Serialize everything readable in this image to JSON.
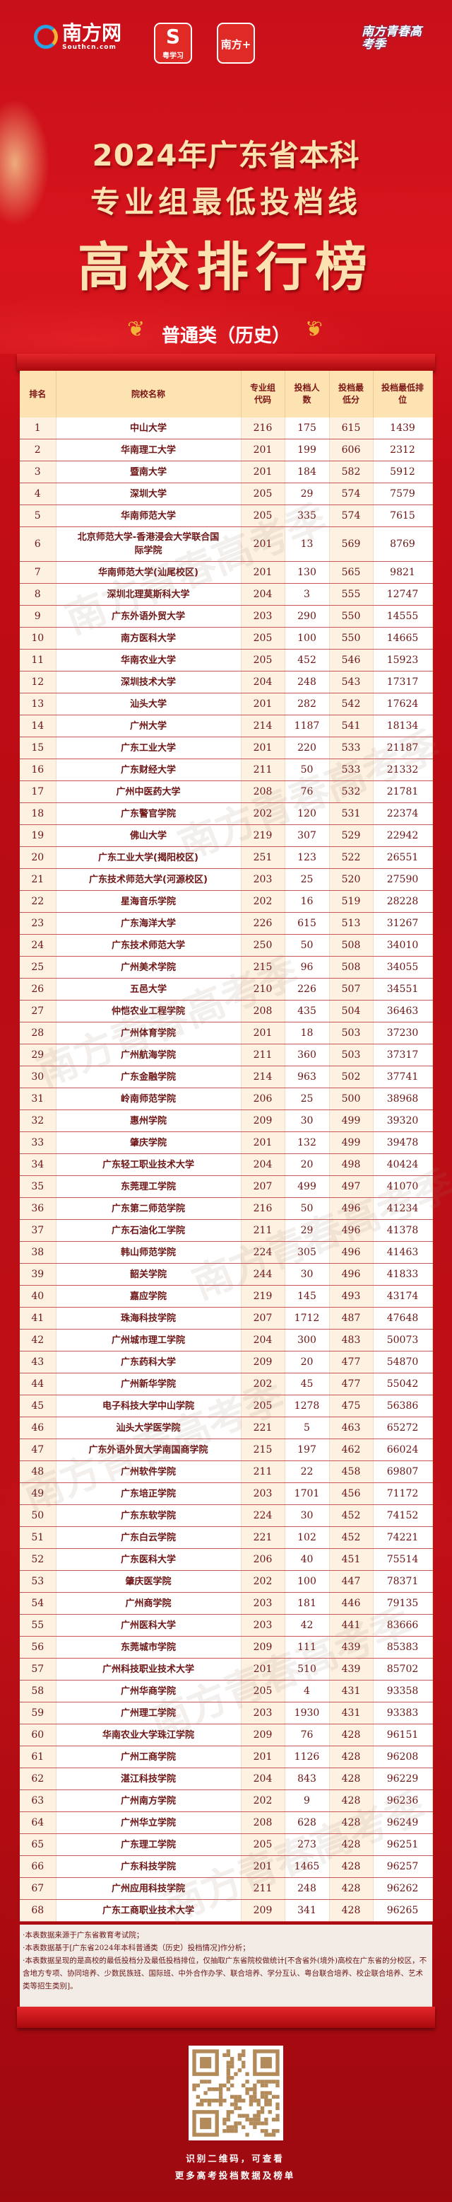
{
  "logos": {
    "southcn": "南方网",
    "southcn_sub": "Southcn.com",
    "yuexuexi": "粤学习",
    "nanfangplus": "南方+",
    "qingchun": "南方青春高考季"
  },
  "header": {
    "line1": "2024年广东省本科",
    "line2": "专业组最低投档线",
    "line3": "高校排行榜",
    "subtitle": "普通类（历史）"
  },
  "watermark": "南方青春高考季",
  "colors": {
    "primary_red": "#c8101a",
    "gold": "#fbe2b0",
    "text_dark_red": "#6d1414"
  },
  "table": {
    "columns": [
      "排名",
      "院校名称",
      "专业组代码",
      "投档人数",
      "投档最低分",
      "投档最低排位"
    ],
    "rows": [
      [
        "1",
        "中山大学",
        "216",
        "175",
        "615",
        "1439"
      ],
      [
        "2",
        "华南理工大学",
        "201",
        "199",
        "606",
        "2312"
      ],
      [
        "3",
        "暨南大学",
        "201",
        "184",
        "582",
        "5912"
      ],
      [
        "4",
        "深圳大学",
        "205",
        "29",
        "574",
        "7579"
      ],
      [
        "5",
        "华南师范大学",
        "205",
        "335",
        "574",
        "7615"
      ],
      [
        "6",
        "北京师范大学-香港浸会大学联合国际学院",
        "201",
        "13",
        "569",
        "8769"
      ],
      [
        "7",
        "华南师范大学(汕尾校区)",
        "201",
        "130",
        "565",
        "9821"
      ],
      [
        "8",
        "深圳北理莫斯科大学",
        "204",
        "3",
        "555",
        "12747"
      ],
      [
        "9",
        "广东外语外贸大学",
        "203",
        "290",
        "550",
        "14555"
      ],
      [
        "10",
        "南方医科大学",
        "205",
        "100",
        "550",
        "14665"
      ],
      [
        "11",
        "华南农业大学",
        "205",
        "452",
        "546",
        "15923"
      ],
      [
        "12",
        "深圳技术大学",
        "204",
        "248",
        "543",
        "17317"
      ],
      [
        "13",
        "汕头大学",
        "201",
        "282",
        "542",
        "17624"
      ],
      [
        "14",
        "广州大学",
        "214",
        "1187",
        "541",
        "18134"
      ],
      [
        "15",
        "广东工业大学",
        "201",
        "220",
        "533",
        "21187"
      ],
      [
        "16",
        "广东财经大学",
        "211",
        "50",
        "533",
        "21332"
      ],
      [
        "17",
        "广州中医药大学",
        "208",
        "76",
        "532",
        "21781"
      ],
      [
        "18",
        "广东警官学院",
        "202",
        "120",
        "531",
        "22374"
      ],
      [
        "19",
        "佛山大学",
        "219",
        "307",
        "529",
        "22942"
      ],
      [
        "20",
        "广东工业大学(揭阳校区)",
        "251",
        "123",
        "522",
        "26551"
      ],
      [
        "21",
        "广东技术师范大学(河源校区)",
        "203",
        "25",
        "520",
        "27590"
      ],
      [
        "22",
        "星海音乐学院",
        "202",
        "16",
        "519",
        "28228"
      ],
      [
        "23",
        "广东海洋大学",
        "226",
        "615",
        "513",
        "31267"
      ],
      [
        "24",
        "广东技术师范大学",
        "250",
        "50",
        "508",
        "34010"
      ],
      [
        "25",
        "广州美术学院",
        "215",
        "96",
        "508",
        "34055"
      ],
      [
        "26",
        "五邑大学",
        "210",
        "226",
        "507",
        "34551"
      ],
      [
        "27",
        "仲恺农业工程学院",
        "208",
        "435",
        "504",
        "36463"
      ],
      [
        "28",
        "广州体育学院",
        "201",
        "18",
        "503",
        "37230"
      ],
      [
        "29",
        "广州航海学院",
        "211",
        "360",
        "503",
        "37317"
      ],
      [
        "30",
        "广东金融学院",
        "214",
        "963",
        "502",
        "37741"
      ],
      [
        "31",
        "岭南师范学院",
        "206",
        "25",
        "500",
        "38968"
      ],
      [
        "32",
        "惠州学院",
        "209",
        "30",
        "499",
        "39320"
      ],
      [
        "33",
        "肇庆学院",
        "201",
        "132",
        "499",
        "39478"
      ],
      [
        "34",
        "广东轻工职业技术大学",
        "204",
        "20",
        "498",
        "40424"
      ],
      [
        "35",
        "东莞理工学院",
        "207",
        "499",
        "497",
        "41070"
      ],
      [
        "36",
        "广东第二师范学院",
        "216",
        "50",
        "496",
        "41234"
      ],
      [
        "37",
        "广东石油化工学院",
        "211",
        "29",
        "496",
        "41378"
      ],
      [
        "38",
        "韩山师范学院",
        "224",
        "305",
        "496",
        "41463"
      ],
      [
        "39",
        "韶关学院",
        "244",
        "30",
        "496",
        "41833"
      ],
      [
        "40",
        "嘉应学院",
        "219",
        "145",
        "493",
        "43174"
      ],
      [
        "41",
        "珠海科技学院",
        "207",
        "1712",
        "487",
        "47648"
      ],
      [
        "42",
        "广州城市理工学院",
        "204",
        "300",
        "483",
        "50073"
      ],
      [
        "43",
        "广东药科大学",
        "209",
        "20",
        "477",
        "54870"
      ],
      [
        "44",
        "广州新华学院",
        "202",
        "45",
        "477",
        "55042"
      ],
      [
        "45",
        "电子科技大学中山学院",
        "205",
        "1278",
        "475",
        "56386"
      ],
      [
        "46",
        "汕头大学医学院",
        "221",
        "5",
        "463",
        "65272"
      ],
      [
        "47",
        "广东外语外贸大学南国商学院",
        "215",
        "197",
        "462",
        "66024"
      ],
      [
        "48",
        "广州软件学院",
        "211",
        "22",
        "458",
        "69807"
      ],
      [
        "49",
        "广东培正学院",
        "203",
        "1701",
        "456",
        "71172"
      ],
      [
        "50",
        "广东东软学院",
        "224",
        "30",
        "452",
        "74152"
      ],
      [
        "51",
        "广东白云学院",
        "221",
        "102",
        "452",
        "74221"
      ],
      [
        "52",
        "广东医科大学",
        "206",
        "40",
        "451",
        "75514"
      ],
      [
        "53",
        "肇庆医学院",
        "202",
        "100",
        "447",
        "78371"
      ],
      [
        "54",
        "广州商学院",
        "203",
        "181",
        "446",
        "79135"
      ],
      [
        "55",
        "广州医科大学",
        "203",
        "42",
        "441",
        "83666"
      ],
      [
        "56",
        "东莞城市学院",
        "209",
        "111",
        "439",
        "85383"
      ],
      [
        "57",
        "广州科技职业技术大学",
        "201",
        "510",
        "439",
        "85702"
      ],
      [
        "58",
        "广州华商学院",
        "205",
        "4",
        "431",
        "93358"
      ],
      [
        "59",
        "广州理工学院",
        "203",
        "1930",
        "431",
        "93383"
      ],
      [
        "60",
        "华南农业大学珠江学院",
        "209",
        "76",
        "428",
        "96151"
      ],
      [
        "61",
        "广州工商学院",
        "201",
        "1126",
        "428",
        "96208"
      ],
      [
        "62",
        "湛江科技学院",
        "204",
        "843",
        "428",
        "96229"
      ],
      [
        "63",
        "广州南方学院",
        "202",
        "9",
        "428",
        "96236"
      ],
      [
        "64",
        "广州华立学院",
        "208",
        "628",
        "428",
        "96249"
      ],
      [
        "65",
        "广东理工学院",
        "205",
        "273",
        "428",
        "96251"
      ],
      [
        "66",
        "广东科技学院",
        "201",
        "1465",
        "428",
        "96257"
      ],
      [
        "67",
        "广州应用科技学院",
        "211",
        "248",
        "428",
        "96262"
      ],
      [
        "68",
        "广东工商职业技术大学",
        "209",
        "341",
        "428",
        "96265"
      ]
    ]
  },
  "notes": [
    "·本表数据来源于广东省教育考试院；",
    "·本表数据基于[广东省2024年本科普通类（历史）投档情况]作分析；",
    "·本表数据呈现的是高校的最低投档分及最低投档排位，仅抽取广东省院校做统计[不含省外(境外)高校在广东省的分校区，不含地方专项、协同培养、少数民族班、国际班、中外合作办学、联合培养、学分互认、粤台联合培养、校企联合培养、艺术类等招生类别]。"
  ],
  "footer": {
    "qr_line1": "识别二维码，可查看",
    "qr_line2": "更多高考投档数据及榜单"
  }
}
